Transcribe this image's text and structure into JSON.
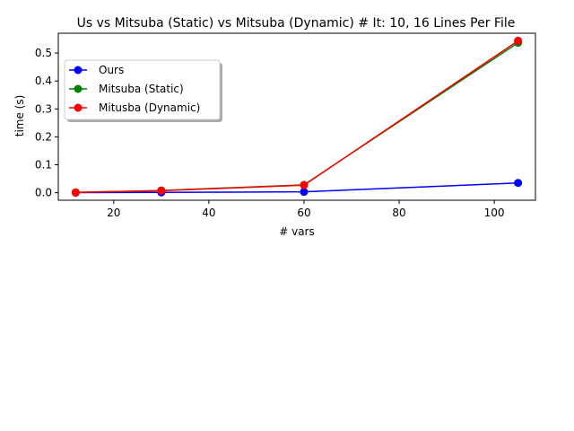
{
  "chart_data": {
    "type": "line",
    "title": "Us vs Mitsuba (Static) vs Mitsuba (Dynamic) # It: 10, 16 Lines Per File",
    "xlabel": "# vars",
    "ylabel": "time (s)",
    "xlim": [
      8.35,
      108.65
    ],
    "ylim": [
      -0.027,
      0.571
    ],
    "xticks": [
      20,
      40,
      60,
      80,
      100
    ],
    "yticks": [
      0.0,
      0.1,
      0.2,
      0.3,
      0.4,
      0.5
    ],
    "xtick_labels": [
      "20",
      "40",
      "60",
      "80",
      "100"
    ],
    "ytick_labels": [
      "0.0",
      "0.1",
      "0.2",
      "0.3",
      "0.4",
      "0.5"
    ],
    "grid": false,
    "legend_position": "upper-left",
    "x": [
      12,
      30,
      60,
      105
    ],
    "series": [
      {
        "name": "Ours",
        "color": "#0000ff",
        "values": [
          0.0002,
          0.001,
          0.003,
          0.035
        ]
      },
      {
        "name": "Mitsuba (Static)",
        "color": "#008000",
        "values": [
          0.001,
          0.008,
          0.028,
          0.537
        ]
      },
      {
        "name": "Mitusba (Dynamic)",
        "color": "#ff0000",
        "values": [
          0.001,
          0.007,
          0.027,
          0.544
        ]
      }
    ]
  }
}
